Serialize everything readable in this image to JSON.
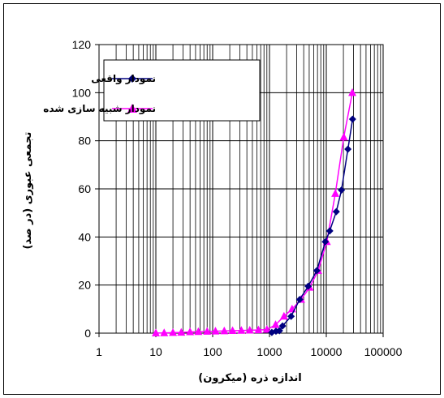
{
  "chart_data": {
    "type": "line",
    "title": "",
    "xlabel": "اندازه ذره (میکرون)",
    "ylabel": "تجمعی عبوری (در صد)",
    "x_scale": "log",
    "xlim": [
      1,
      100000
    ],
    "ylim": [
      0,
      120
    ],
    "x_ticks": [
      "1",
      "10",
      "100",
      "1000",
      "10000",
      "100000"
    ],
    "y_ticks": [
      "0",
      "20",
      "40",
      "60",
      "80",
      "100",
      "120"
    ],
    "grid": true,
    "legend_position": "top-left",
    "series": [
      {
        "name": "نمودار واقعی",
        "color": "#000080",
        "marker": "diamond",
        "x": [
          1100,
          1300,
          1500,
          1700,
          2400,
          3400,
          4800,
          6800,
          9600,
          11500,
          15000,
          18500,
          24000,
          29000
        ],
        "y": [
          0.3,
          0.8,
          1.0,
          3.0,
          7.0,
          14.0,
          19.5,
          26.0,
          38.0,
          42.5,
          50.5,
          59.5,
          76.5,
          89.0
        ]
      },
      {
        "name": "نمودار شبیه سازی شده",
        "color": "#FF00FF",
        "marker": "triangle",
        "x": [
          10,
          14,
          20,
          28,
          40,
          56,
          80,
          112,
          160,
          224,
          320,
          450,
          640,
          900,
          1280,
          1800,
          2500,
          3600,
          5100,
          7200,
          10200,
          14400,
          20300,
          28700
        ],
        "y": [
          0.05,
          0.1,
          0.2,
          0.3,
          0.5,
          0.6,
          0.7,
          0.8,
          0.9,
          1.0,
          1.1,
          1.2,
          1.3,
          1.5,
          3.5,
          7.0,
          10.0,
          14.0,
          19.0,
          26.0,
          38.0,
          58.0,
          81.5,
          100.0
        ]
      }
    ]
  }
}
